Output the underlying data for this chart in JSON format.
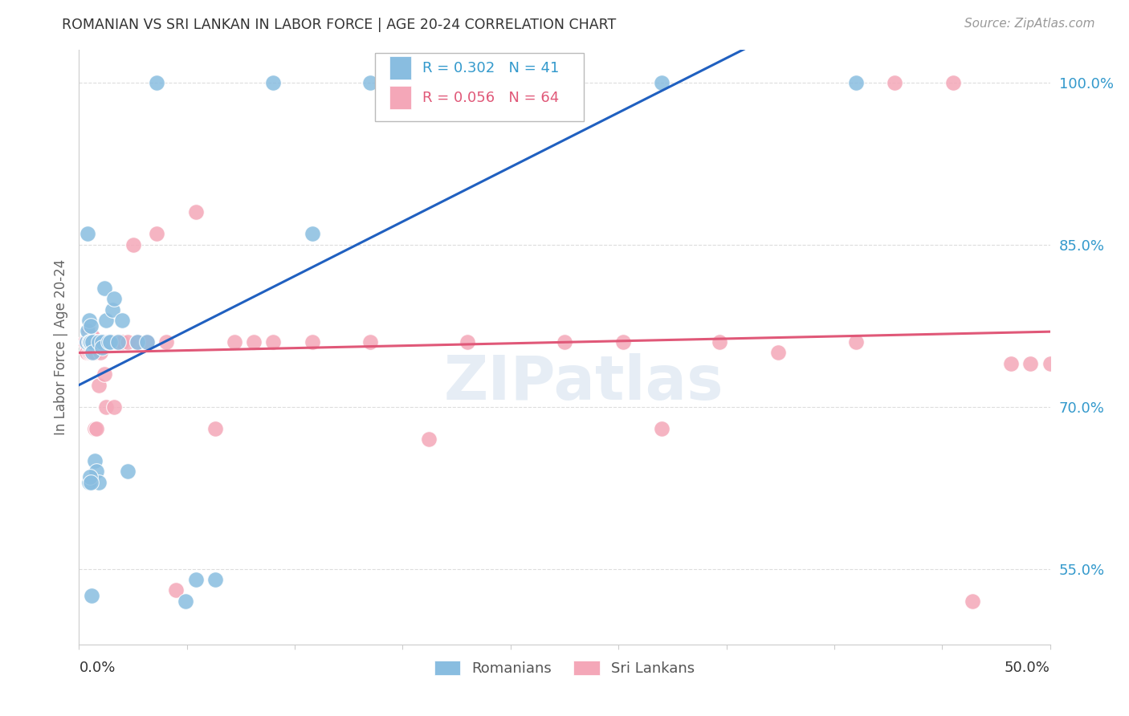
{
  "title": "ROMANIAN VS SRI LANKAN IN LABOR FORCE | AGE 20-24 CORRELATION CHART",
  "source": "Source: ZipAtlas.com",
  "ylabel": "In Labor Force | Age 20-24",
  "xlim": [
    0.0,
    50.0
  ],
  "ylim": [
    48.0,
    103.0
  ],
  "ytick_positions": [
    55.0,
    70.0,
    85.0,
    100.0
  ],
  "ytick_labels": [
    "55.0%",
    "70.0%",
    "85.0%",
    "100.0%"
  ],
  "xtick_left_label": "0.0%",
  "xtick_right_label": "50.0%",
  "watermark": "ZIPatlas",
  "legend_r1": "R = 0.302",
  "legend_n1": "N = 41",
  "legend_r2": "R = 0.056",
  "legend_n2": "N = 64",
  "romanian_color": "#89bde0",
  "srilankan_color": "#f4a7b8",
  "line_blue": "#2060c0",
  "line_pink": "#e05878",
  "grid_color": "#dddddd",
  "romanian_scatter_x": [
    0.4,
    0.45,
    0.5,
    0.5,
    0.55,
    0.6,
    0.6,
    0.7,
    0.7,
    0.8,
    0.9,
    1.0,
    1.0,
    1.2,
    1.2,
    1.3,
    1.4,
    1.5,
    1.6,
    1.7,
    1.8,
    2.0,
    2.2,
    2.5,
    3.0,
    3.5,
    4.0,
    5.5,
    6.0,
    7.0,
    10.0,
    12.0,
    15.0,
    20.0,
    30.0,
    40.0,
    0.45,
    0.5,
    0.55,
    0.6,
    0.65
  ],
  "romanian_scatter_y": [
    76.0,
    77.0,
    76.0,
    78.0,
    76.0,
    77.5,
    76.0,
    76.0,
    75.0,
    65.0,
    64.0,
    76.0,
    63.0,
    76.0,
    75.5,
    81.0,
    78.0,
    76.0,
    76.0,
    79.0,
    80.0,
    76.0,
    78.0,
    64.0,
    76.0,
    76.0,
    100.0,
    52.0,
    54.0,
    54.0,
    100.0,
    86.0,
    100.0,
    100.0,
    100.0,
    100.0,
    86.0,
    63.0,
    63.5,
    63.0,
    52.5
  ],
  "srilankan_scatter_x": [
    0.3,
    0.4,
    0.4,
    0.5,
    0.5,
    0.5,
    0.6,
    0.6,
    0.6,
    0.6,
    0.7,
    0.7,
    0.7,
    0.8,
    0.8,
    0.8,
    0.9,
    0.9,
    1.0,
    1.0,
    1.1,
    1.1,
    1.2,
    1.2,
    1.3,
    1.3,
    1.4,
    1.4,
    1.5,
    1.5,
    1.6,
    1.7,
    1.8,
    1.9,
    2.0,
    2.2,
    2.5,
    2.8,
    3.0,
    3.5,
    4.0,
    4.5,
    5.0,
    6.0,
    7.0,
    8.0,
    9.0,
    10.0,
    12.0,
    15.0,
    18.0,
    20.0,
    25.0,
    28.0,
    30.0,
    33.0,
    36.0,
    40.0,
    42.0,
    45.0,
    46.0,
    48.0,
    49.0,
    50.0
  ],
  "srilankan_scatter_y": [
    76.0,
    76.0,
    75.0,
    75.0,
    76.0,
    77.0,
    75.0,
    75.5,
    76.0,
    76.5,
    75.0,
    76.0,
    76.5,
    68.0,
    75.0,
    76.0,
    68.0,
    76.0,
    72.0,
    76.0,
    75.0,
    76.0,
    76.0,
    76.0,
    73.0,
    76.0,
    70.0,
    76.0,
    76.0,
    76.0,
    76.0,
    76.0,
    70.0,
    76.0,
    76.0,
    76.0,
    76.0,
    85.0,
    76.0,
    76.0,
    86.0,
    76.0,
    53.0,
    88.0,
    68.0,
    76.0,
    76.0,
    76.0,
    76.0,
    76.0,
    67.0,
    76.0,
    76.0,
    76.0,
    68.0,
    76.0,
    75.0,
    76.0,
    100.0,
    100.0,
    52.0,
    74.0,
    74.0,
    74.0
  ]
}
